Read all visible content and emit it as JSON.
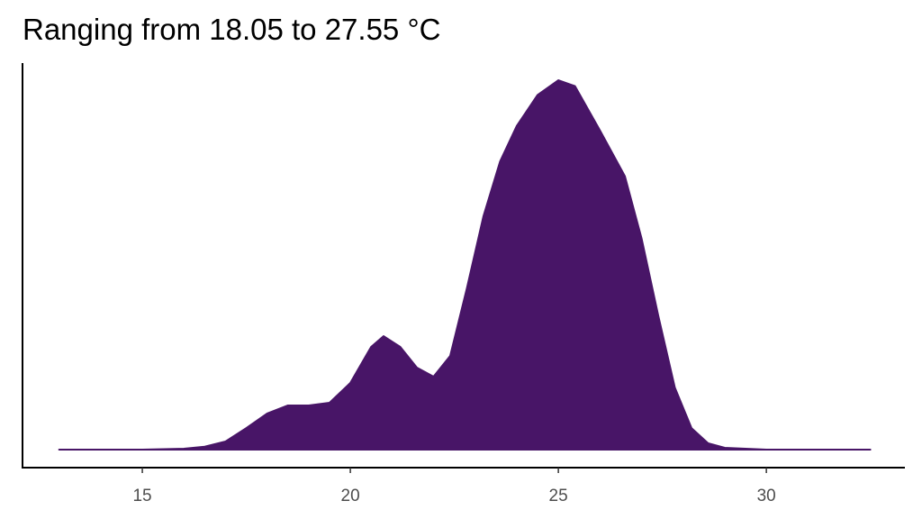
{
  "chart_data": {
    "type": "area",
    "title": "Ranging from 18.05 to 27.55 °C",
    "x": [
      13,
      15,
      16,
      16.5,
      17,
      17.5,
      18,
      18.5,
      19,
      19.5,
      20,
      20.5,
      20.8,
      21.2,
      21.6,
      22,
      22.4,
      22.8,
      23.2,
      23.6,
      24,
      24.5,
      25,
      25.4,
      26,
      26.6,
      27,
      27.4,
      27.8,
      28.2,
      28.6,
      29,
      30,
      32.5
    ],
    "values": [
      0,
      0,
      0.0006,
      0.002,
      0.0055,
      0.0146,
      0.0244,
      0.0299,
      0.0299,
      0.0317,
      0.0451,
      0.0695,
      0.0768,
      0.0695,
      0.0555,
      0.0494,
      0.0634,
      0.109,
      0.158,
      0.195,
      0.219,
      0.24,
      0.25,
      0.246,
      0.216,
      0.185,
      0.143,
      0.0909,
      0.042,
      0.0146,
      0.0043,
      0.0012,
      0,
      0
    ],
    "color": "#481567",
    "xlim": [
      12.12,
      33.33
    ],
    "xticks": [
      15,
      20,
      25,
      30
    ],
    "ylim": [
      -0.0122,
      0.2616
    ]
  }
}
